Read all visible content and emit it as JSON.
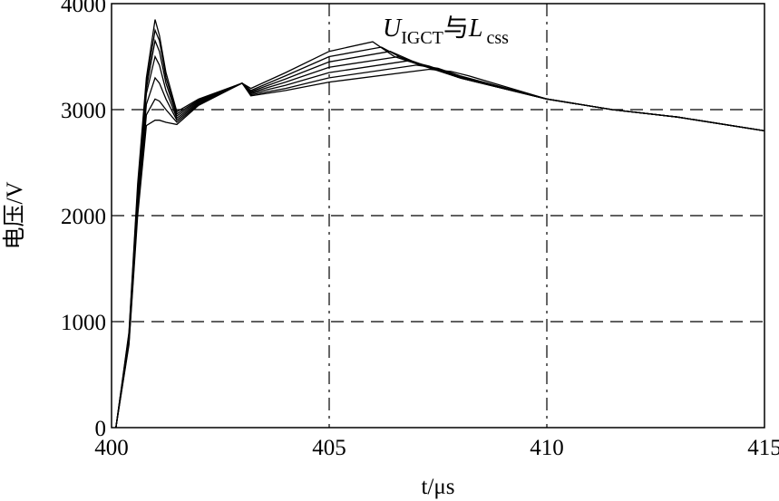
{
  "chart_data": {
    "type": "line",
    "xlabel": "t/μs",
    "ylabel": "电压/V",
    "annotation": "U_IGCT 与 L_css",
    "annotation_main": "U",
    "annotation_sub": "IGCT",
    "annotation_mid": "与",
    "annotation_main2": "L",
    "annotation_sub2": "css",
    "xlim": [
      400,
      415
    ],
    "ylim": [
      0,
      4000
    ],
    "xticks": [
      "400",
      "405",
      "410",
      "415"
    ],
    "yticks": [
      "0",
      "1000",
      "2000",
      "3000",
      "4000"
    ],
    "grid_y": [
      1000,
      2000,
      3000
    ],
    "grid_x": [
      405,
      410
    ],
    "series": [
      {
        "x": [
          400.1,
          400.4,
          400.6,
          400.8,
          401.0,
          401.1,
          401.25,
          401.5,
          402.0,
          403.0,
          403.2,
          404.0,
          405.0,
          406.0,
          406.5,
          408.0,
          410.0,
          411.5,
          413.0,
          415.0
        ],
        "values": [
          0,
          900,
          2300,
          3300,
          3850,
          3700,
          3350,
          2980,
          3100,
          3250,
          3200,
          3350,
          3550,
          3640,
          3500,
          3300,
          3100,
          3000,
          2930,
          2800
        ]
      },
      {
        "x": [
          400.1,
          400.4,
          400.6,
          400.8,
          401.0,
          401.1,
          401.25,
          401.5,
          402.0,
          403.0,
          403.2,
          404.0,
          405.0,
          406.2,
          406.7,
          408.0,
          410.0,
          411.5,
          413.0,
          415.0
        ],
        "values": [
          0,
          880,
          2250,
          3250,
          3750,
          3650,
          3300,
          2960,
          3090,
          3250,
          3180,
          3320,
          3500,
          3590,
          3480,
          3300,
          3100,
          3000,
          2930,
          2800
        ]
      },
      {
        "x": [
          400.1,
          400.4,
          400.6,
          400.8,
          401.0,
          401.1,
          401.25,
          401.5,
          402.0,
          403.0,
          403.2,
          404.0,
          405.0,
          406.4,
          406.9,
          408.0,
          410.0,
          411.5,
          413.0,
          415.0
        ],
        "values": [
          0,
          860,
          2200,
          3200,
          3650,
          3550,
          3250,
          2940,
          3080,
          3250,
          3170,
          3290,
          3450,
          3550,
          3460,
          3300,
          3100,
          3000,
          2930,
          2800
        ]
      },
      {
        "x": [
          400.1,
          400.4,
          400.6,
          400.8,
          401.0,
          401.1,
          401.25,
          401.5,
          402.0,
          403.0,
          403.2,
          404.0,
          405.0,
          406.6,
          407.1,
          408.0,
          410.0,
          411.5,
          413.0,
          415.0
        ],
        "values": [
          0,
          840,
          2150,
          3150,
          3500,
          3420,
          3180,
          2920,
          3070,
          3250,
          3160,
          3260,
          3400,
          3500,
          3430,
          3300,
          3100,
          3000,
          2930,
          2800
        ]
      },
      {
        "x": [
          400.1,
          400.4,
          400.6,
          400.8,
          401.0,
          401.1,
          401.25,
          401.5,
          402.0,
          403.0,
          403.2,
          404.0,
          405.0,
          406.8,
          407.3,
          408.0,
          410.0,
          411.5,
          413.0,
          415.0
        ],
        "values": [
          0,
          820,
          2100,
          3050,
          3300,
          3250,
          3100,
          2900,
          3060,
          3250,
          3150,
          3230,
          3350,
          3460,
          3410,
          3310,
          3100,
          3000,
          2930,
          2800
        ]
      },
      {
        "x": [
          400.1,
          400.4,
          400.6,
          400.8,
          401.0,
          401.1,
          401.25,
          401.5,
          402.0,
          403.0,
          403.2,
          404.0,
          405.0,
          407.0,
          407.5,
          408.0,
          410.0,
          411.5,
          413.0,
          415.0
        ],
        "values": [
          0,
          800,
          2050,
          2950,
          3100,
          3080,
          3000,
          2880,
          3050,
          3250,
          3140,
          3200,
          3300,
          3420,
          3390,
          3320,
          3100,
          3000,
          2930,
          2800
        ]
      },
      {
        "x": [
          400.1,
          400.4,
          400.6,
          400.8,
          401.0,
          401.1,
          401.25,
          401.5,
          402.0,
          403.0,
          403.2,
          404.0,
          405.0,
          407.3,
          407.8,
          408.2,
          410.0,
          411.5,
          413.0,
          415.0
        ],
        "values": [
          0,
          780,
          2000,
          2850,
          2900,
          2900,
          2880,
          2860,
          3040,
          3250,
          3130,
          3180,
          3260,
          3380,
          3360,
          3320,
          3100,
          3000,
          2930,
          2800
        ]
      }
    ]
  }
}
